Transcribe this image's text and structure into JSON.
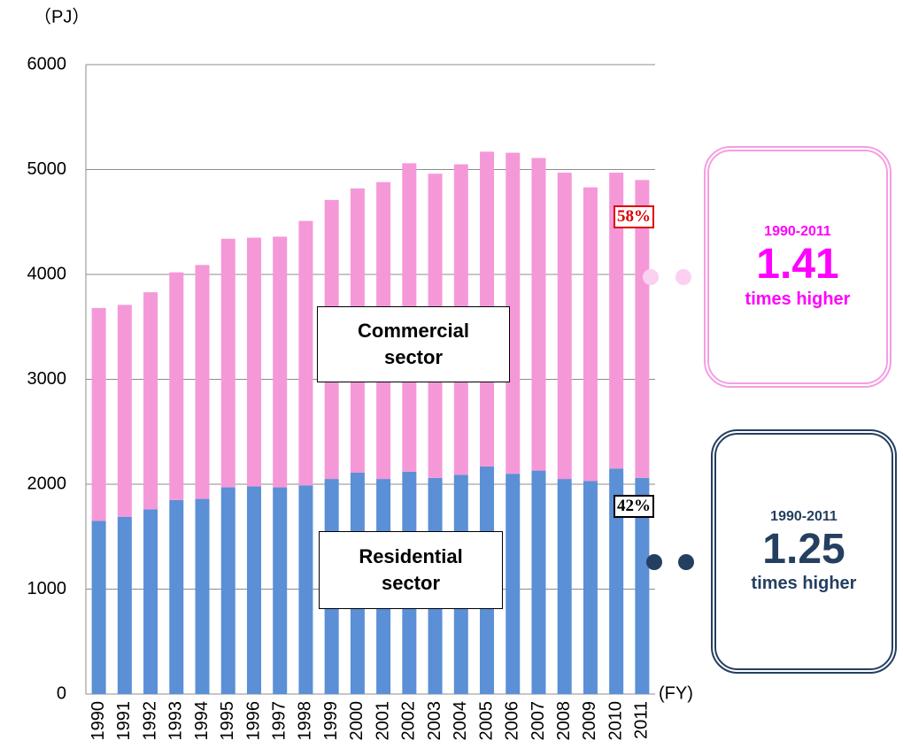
{
  "chart_data": {
    "type": "stacked-bar",
    "y_unit": "（PJ）",
    "x_unit": "(FY)",
    "categories": [
      "1990",
      "1991",
      "1992",
      "1993",
      "1994",
      "1995",
      "1996",
      "1997",
      "1998",
      "1999",
      "2000",
      "2001",
      "2002",
      "2003",
      "2004",
      "2005",
      "2006",
      "2007",
      "2008",
      "2009",
      "2010",
      "2011"
    ],
    "series": [
      {
        "name": "Residential sector",
        "color": "#5b8fd6",
        "share": "42%",
        "share_color": "#000000",
        "values": [
          1650,
          1690,
          1760,
          1850,
          1860,
          1970,
          1980,
          1970,
          1990,
          2050,
          2110,
          2050,
          2120,
          2060,
          2090,
          2170,
          2100,
          2130,
          2050,
          2030,
          2150,
          2060
        ]
      },
      {
        "name": "Commercial sector",
        "color": "#f598d8",
        "share": "58%",
        "share_color": "#e00000",
        "values": [
          2030,
          2020,
          2070,
          2170,
          2230,
          2370,
          2370,
          2390,
          2520,
          2660,
          2710,
          2830,
          2940,
          2900,
          2960,
          3000,
          3060,
          2980,
          2920,
          2800,
          2820,
          2840
        ]
      }
    ],
    "ylim": [
      0,
      6000
    ],
    "yticks": [
      0,
      1000,
      2000,
      3000,
      4000,
      5000,
      6000
    ],
    "grid": true,
    "callouts": [
      {
        "period": "1990-2011",
        "ratio": 1.41,
        "note": "times higher",
        "color": "#ff00ff",
        "border": "#f59ee3",
        "dot": "#fbd0f0"
      },
      {
        "period": "1990-2011",
        "ratio": 1.25,
        "note": "times higher",
        "color": "#243f60",
        "border": "#243f60",
        "dot": "#243f60"
      }
    ]
  }
}
